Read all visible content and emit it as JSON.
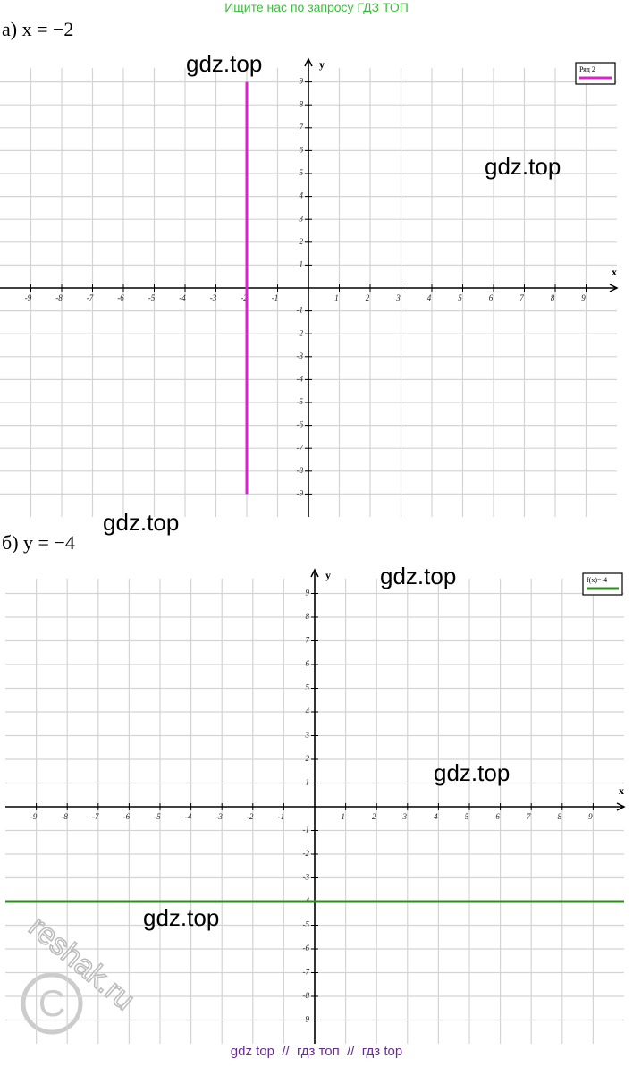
{
  "header": "Ищите нас по запросу ГДЗ ТОП",
  "chart_data": [
    {
      "type": "line",
      "title": "а) x = −2",
      "xlabel": "x",
      "ylabel": "y",
      "xlim": [
        -10,
        10
      ],
      "ylim": [
        -10,
        10
      ],
      "xticks": [
        -9,
        -8,
        -7,
        -6,
        -5,
        -4,
        -3,
        -2,
        -1,
        1,
        2,
        3,
        4,
        5,
        6,
        7,
        8,
        9
      ],
      "yticks": [
        -9,
        -8,
        -7,
        -6,
        -5,
        -4,
        -3,
        -2,
        -1,
        1,
        2,
        3,
        4,
        5,
        6,
        7,
        8,
        9
      ],
      "grid": true,
      "legend": "upper right",
      "series": [
        {
          "name": "Ряд 2",
          "color": "#e020d0",
          "x": [
            -2,
            -2
          ],
          "values": [
            -9,
            9
          ]
        }
      ]
    },
    {
      "type": "line",
      "title": "б) y = −4",
      "xlabel": "x",
      "ylabel": "y",
      "xlim": [
        -10,
        10
      ],
      "ylim": [
        -10,
        10
      ],
      "xticks": [
        -9,
        -8,
        -7,
        -6,
        -5,
        -4,
        -3,
        -2,
        -1,
        1,
        2,
        3,
        4,
        5,
        6,
        7,
        8,
        9
      ],
      "yticks": [
        -9,
        -8,
        -7,
        -6,
        -5,
        -4,
        -3,
        -2,
        -1,
        1,
        2,
        3,
        4,
        5,
        6,
        7,
        8,
        9
      ],
      "grid": true,
      "legend": "upper right",
      "series": [
        {
          "name": "f(x)=-4",
          "color": "#2e8b1e",
          "x": [
            -10,
            10
          ],
          "values": [
            -4,
            -4
          ]
        }
      ]
    }
  ],
  "watermarks": [
    "gdz.top",
    "gdz.top",
    "gdz.top",
    "gdz.top",
    "gdz.top",
    "gdz.top",
    "reshak.ru"
  ],
  "footer": "gdz top  //  гдз топ  //  гдз top"
}
